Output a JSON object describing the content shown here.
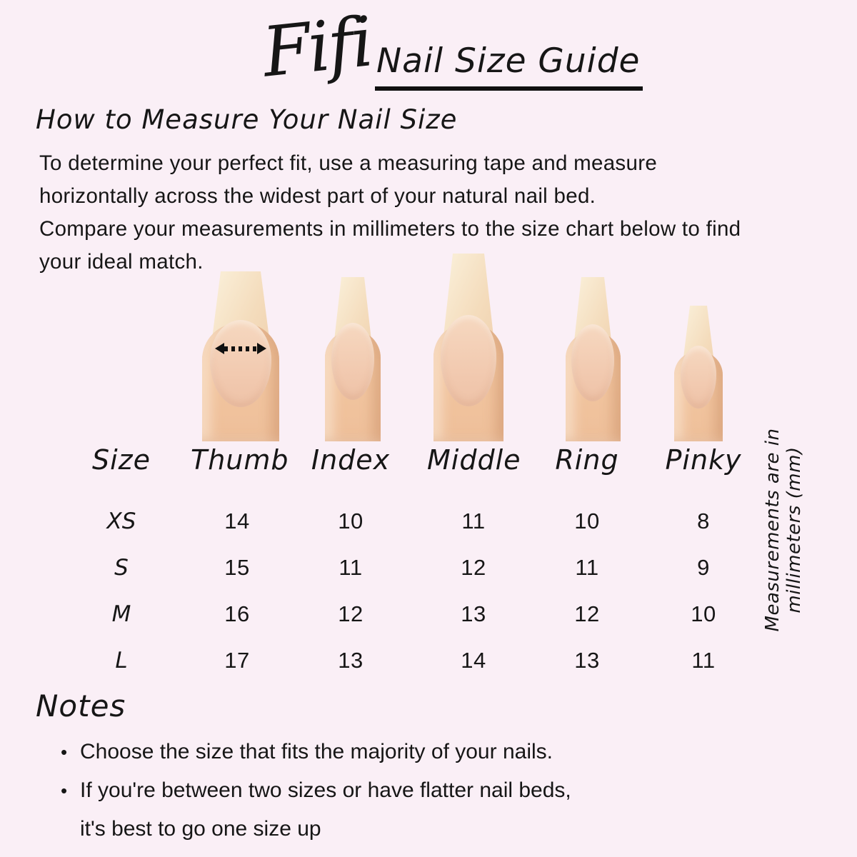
{
  "page": {
    "background_color": "#faeff6",
    "text_color": "#161616",
    "skin_color": "#f1c49e",
    "nail_color": "#f4dcbc"
  },
  "header": {
    "brand": "Fifi",
    "title": "Nail Size Guide"
  },
  "how_to": {
    "heading": "How to Measure Your Nail Size",
    "lines": [
      "To determine your perfect fit, use a measuring tape and measure",
      "horizontally across the widest part of your natural nail bed.",
      "Compare your measurements in millimeters to the size chart below to find",
      "your ideal match."
    ]
  },
  "size_chart": {
    "columns": [
      "Size",
      "Thumb",
      "Index",
      "Middle",
      "Ring",
      "Pinky"
    ],
    "rows": [
      {
        "size": "XS",
        "values": [
          "14",
          "10",
          "11",
          "10",
          "8"
        ]
      },
      {
        "size": "S",
        "values": [
          "15",
          "11",
          "12",
          "11",
          "9"
        ]
      },
      {
        "size": "M",
        "values": [
          "16",
          "12",
          "13",
          "12",
          "10"
        ]
      },
      {
        "size": "L",
        "values": [
          "17",
          "13",
          "14",
          "13",
          "11"
        ]
      }
    ],
    "unit_note": "Measurements are in millimeters (mm)"
  },
  "notes": {
    "heading": "Notes",
    "lines": [
      {
        "bullet": "•",
        "text": "Choose the size that fits the majority of your nails."
      },
      {
        "bullet": "•",
        "text": "If you're between two sizes or have flatter nail beds,"
      },
      {
        "bullet": "",
        "text": "it's best to go one size up"
      }
    ]
  }
}
